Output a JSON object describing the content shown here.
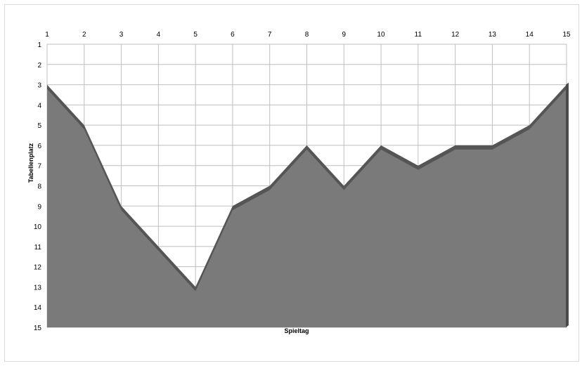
{
  "chart_data": {
    "type": "area",
    "title": "",
    "xlabel": "Spieltag",
    "ylabel": "Tabellenplatz",
    "x": [
      1,
      2,
      3,
      4,
      5,
      6,
      7,
      8,
      9,
      10,
      11,
      12,
      13,
      14,
      15
    ],
    "xlim": [
      1,
      15
    ],
    "ylim": [
      1,
      15
    ],
    "y_reversed": true,
    "x_axis_position": "top",
    "grid": true,
    "legend": "none",
    "series": [
      {
        "values": [
          3,
          5,
          9,
          11,
          13,
          9,
          8,
          6,
          8,
          6,
          7,
          6,
          6,
          5,
          3
        ]
      }
    ],
    "colors": {
      "area": "#7a7a7a",
      "area_edge": "#555555",
      "grid": "#bfbfbf"
    }
  }
}
